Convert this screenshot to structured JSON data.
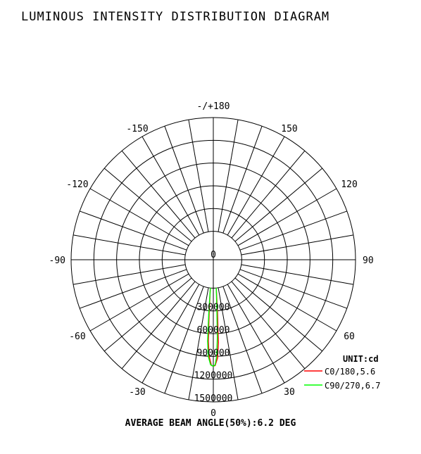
{
  "chart_data": {
    "type": "polar",
    "title": "LUMINOUS INTENSITY DISTRIBUTION DIAGRAM",
    "unit_label": "UNIT:cd",
    "note": "AVERAGE BEAM ANGLE(50%):6.2 DEG",
    "angle_labels": [
      {
        "angle": 180,
        "text": "-/+180"
      },
      {
        "angle": 150,
        "text": "150"
      },
      {
        "angle": 120,
        "text": "120"
      },
      {
        "angle": 90,
        "text": "90"
      },
      {
        "angle": 60,
        "text": "60"
      },
      {
        "angle": 30,
        "text": "30"
      },
      {
        "angle": 0,
        "text": "0"
      },
      {
        "angle": -30,
        "text": "-30"
      },
      {
        "angle": -60,
        "text": "-60"
      },
      {
        "angle": -90,
        "text": "-90"
      },
      {
        "angle": -120,
        "text": "-120"
      },
      {
        "angle": -150,
        "text": "-150"
      }
    ],
    "radial_labels": [
      "0",
      "300000",
      "600000",
      "900000",
      "1200000",
      "1500000"
    ],
    "rlim": [
      0,
      1500000
    ],
    "center_offset_fraction": 0.2,
    "spoke_step_deg": 10,
    "series": [
      {
        "name": "C0/180,5.6",
        "color": "#ff0000",
        "points": [
          [
            -6,
            0
          ],
          [
            -4.5,
            320000
          ],
          [
            -3.5,
            700000
          ],
          [
            -2.5,
            900000
          ],
          [
            -1,
            1020000
          ],
          [
            0,
            1030000
          ],
          [
            1,
            1020000
          ],
          [
            2.5,
            920000
          ],
          [
            3.5,
            720000
          ],
          [
            4.5,
            330000
          ],
          [
            6,
            0
          ]
        ]
      },
      {
        "name": "C90/270,6.7",
        "color": "#00ff00",
        "points": [
          [
            -6,
            0
          ],
          [
            -4.8,
            350000
          ],
          [
            -4,
            700000
          ],
          [
            -3,
            900000
          ],
          [
            -1.5,
            1010000
          ],
          [
            0,
            1030000
          ],
          [
            1,
            1010000
          ],
          [
            2,
            900000
          ],
          [
            3,
            650000
          ],
          [
            4,
            300000
          ],
          [
            6,
            0
          ]
        ]
      }
    ]
  }
}
